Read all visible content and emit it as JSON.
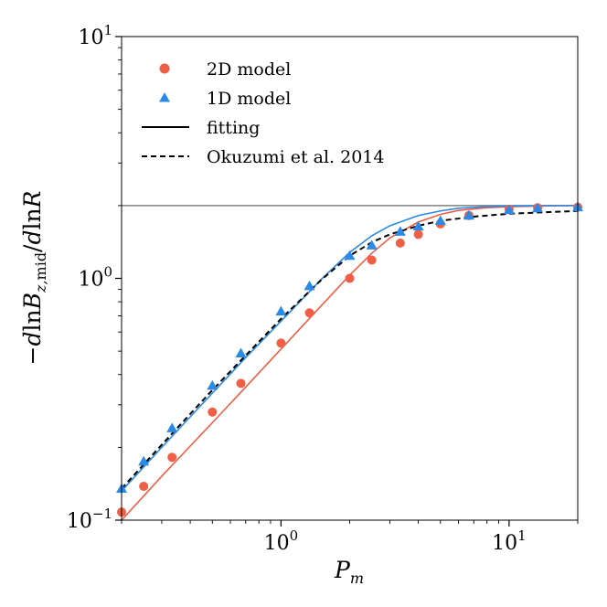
{
  "chart_data": {
    "type": "scatter",
    "xscale": "log",
    "yscale": "log",
    "xlim": [
      0.2,
      20
    ],
    "ylim": [
      0.1,
      10
    ],
    "xlabel": "P_m",
    "ylabel": "−dlnB_{z,mid}/dlnR",
    "x_ticks": [
      {
        "value": 1,
        "base": "10",
        "exp": "0"
      },
      {
        "value": 10,
        "base": "10",
        "exp": "1"
      }
    ],
    "y_ticks": [
      {
        "value": 0.1,
        "base": "10",
        "exp": "−1"
      },
      {
        "value": 1,
        "base": "10",
        "exp": "0"
      },
      {
        "value": 10,
        "base": "10",
        "exp": "1"
      }
    ],
    "reference_line": {
      "y": 2.0,
      "color": "#808080"
    },
    "series": [
      {
        "name": "2D model",
        "kind": "scatter",
        "marker": "circle",
        "color": "#f05e45",
        "x": [
          0.2,
          0.25,
          0.333,
          0.5,
          0.667,
          1.0,
          1.333,
          2.0,
          2.5,
          3.333,
          4.0,
          5.0,
          6.667,
          10.0,
          13.33,
          20.0
        ],
        "y": [
          0.108,
          0.138,
          0.182,
          0.28,
          0.368,
          0.54,
          0.72,
          1.0,
          1.19,
          1.4,
          1.52,
          1.68,
          1.82,
          1.93,
          1.96,
          1.97
        ]
      },
      {
        "name": "1D model",
        "kind": "scatter",
        "marker": "triangle",
        "color": "#2b8ae6",
        "x": [
          0.2,
          0.25,
          0.333,
          0.5,
          0.667,
          1.0,
          1.333,
          2.0,
          2.5,
          3.333,
          4.0,
          5.0,
          6.667,
          10.0,
          13.33,
          20.0
        ],
        "y": [
          0.135,
          0.175,
          0.24,
          0.36,
          0.49,
          0.73,
          0.93,
          1.24,
          1.37,
          1.56,
          1.64,
          1.73,
          1.82,
          1.92,
          1.95,
          1.97
        ]
      },
      {
        "name": "fitting (2D)",
        "kind": "line",
        "style": "solid",
        "color": "#f05e45",
        "x": [
          0.2,
          0.3,
          0.5,
          0.7,
          1.0,
          1.5,
          2.0,
          2.5,
          3.0,
          4.0,
          5.0,
          6.0,
          8.0,
          10.0,
          15.0,
          20.0
        ],
        "y": [
          0.1,
          0.152,
          0.253,
          0.355,
          0.51,
          0.77,
          1.03,
          1.27,
          1.47,
          1.71,
          1.84,
          1.91,
          1.96,
          1.98,
          1.995,
          2.0
        ]
      },
      {
        "name": "fitting (1D)",
        "kind": "line",
        "style": "solid",
        "color": "#2b8ae6",
        "x": [
          0.2,
          0.3,
          0.5,
          0.7,
          1.0,
          1.5,
          2.0,
          2.5,
          3.0,
          4.0,
          5.0,
          6.0,
          8.0,
          10.0,
          15.0,
          20.0
        ],
        "y": [
          0.132,
          0.2,
          0.335,
          0.47,
          0.665,
          0.99,
          1.28,
          1.5,
          1.65,
          1.82,
          1.9,
          1.95,
          1.98,
          1.99,
          2.0,
          2.0
        ]
      },
      {
        "name": "Okuzumi et al. 2014",
        "kind": "line",
        "style": "dashed",
        "color": "#000000",
        "x": [
          0.2,
          0.3,
          0.5,
          0.7,
          1.0,
          1.5,
          2.0,
          2.5,
          3.0,
          4.0,
          5.0,
          7.0,
          10.0,
          15.0,
          20.0
        ],
        "y": [
          0.135,
          0.205,
          0.345,
          0.48,
          0.68,
          0.985,
          1.24,
          1.41,
          1.52,
          1.65,
          1.73,
          1.8,
          1.85,
          1.88,
          1.9
        ]
      }
    ],
    "legend": {
      "position": "top-left",
      "entries": [
        {
          "label": "2D model",
          "marker": "circle",
          "color": "#f05e45"
        },
        {
          "label": "1D model",
          "marker": "triangle",
          "color": "#2b8ae6"
        },
        {
          "label": "fitting",
          "marker": "solid-line",
          "color": "#000000"
        },
        {
          "label": "Okuzumi et al. 2014",
          "marker": "dashed-line",
          "color": "#000000"
        }
      ]
    }
  }
}
